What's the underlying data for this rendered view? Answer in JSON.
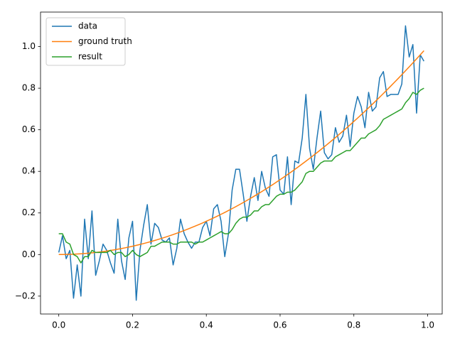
{
  "chart_data": {
    "type": "line",
    "x": [
      0,
      0.01,
      0.02,
      0.03,
      0.04,
      0.05,
      0.06,
      0.07,
      0.08,
      0.09,
      0.1,
      0.11,
      0.12,
      0.13,
      0.14,
      0.15,
      0.16,
      0.17,
      0.18,
      0.19,
      0.2,
      0.21,
      0.22,
      0.23,
      0.24,
      0.25,
      0.26,
      0.27,
      0.28,
      0.29,
      0.3,
      0.31,
      0.32,
      0.33,
      0.34,
      0.35,
      0.36,
      0.37,
      0.38,
      0.39,
      0.4,
      0.41,
      0.42,
      0.43,
      0.44,
      0.45,
      0.46,
      0.47,
      0.48,
      0.49,
      0.5,
      0.51,
      0.52,
      0.53,
      0.54,
      0.55,
      0.56,
      0.57,
      0.58,
      0.59,
      0.6,
      0.61,
      0.62,
      0.63,
      0.64,
      0.65,
      0.66,
      0.67,
      0.68,
      0.69,
      0.7,
      0.71,
      0.72,
      0.73,
      0.74,
      0.75,
      0.76,
      0.77,
      0.78,
      0.79,
      0.8,
      0.81,
      0.82,
      0.83,
      0.84,
      0.85,
      0.86,
      0.87,
      0.88,
      0.89,
      0.9,
      0.91,
      0.92,
      0.93,
      0.94,
      0.95,
      0.96,
      0.97,
      0.98,
      0.99
    ],
    "series": [
      {
        "name": "data",
        "color": "#1f77b4",
        "values": [
          0.01,
          0.09,
          -0.02,
          0.02,
          -0.21,
          -0.05,
          -0.2,
          0.17,
          -0.02,
          0.21,
          -0.1,
          -0.03,
          0.05,
          0.02,
          -0.04,
          -0.09,
          0.17,
          -0.03,
          -0.12,
          0.08,
          0.16,
          -0.22,
          0.02,
          0.14,
          0.24,
          0.05,
          0.15,
          0.13,
          0.07,
          0.06,
          0.08,
          -0.05,
          0.03,
          0.17,
          0.1,
          0.06,
          0.03,
          0.06,
          0.06,
          0.13,
          0.16,
          0.09,
          0.22,
          0.24,
          0.16,
          -0.01,
          0.1,
          0.31,
          0.41,
          0.41,
          0.29,
          0.16,
          0.28,
          0.37,
          0.26,
          0.4,
          0.32,
          0.28,
          0.47,
          0.48,
          0.31,
          0.29,
          0.47,
          0.24,
          0.45,
          0.44,
          0.56,
          0.77,
          0.51,
          0.41,
          0.56,
          0.69,
          0.49,
          0.46,
          0.48,
          0.61,
          0.54,
          0.57,
          0.67,
          0.52,
          0.68,
          0.76,
          0.71,
          0.61,
          0.78,
          0.69,
          0.71,
          0.85,
          0.88,
          0.76,
          0.77,
          0.77,
          0.77,
          0.82,
          1.1,
          0.95,
          1.01,
          0.68,
          0.96,
          0.93
        ]
      },
      {
        "name": "ground truth",
        "color": "#ff7f0e",
        "values": [
          0,
          0.0001,
          0.0004,
          0.0009,
          0.0016,
          0.0025,
          0.0036,
          0.0049,
          0.0064,
          0.0081,
          0.01,
          0.0121,
          0.0144,
          0.0169,
          0.0196,
          0.0225,
          0.0256,
          0.0289,
          0.0324,
          0.0361,
          0.04,
          0.0441,
          0.0484,
          0.0529,
          0.0576,
          0.0625,
          0.0676,
          0.0729,
          0.0784,
          0.0841,
          0.09,
          0.0961,
          0.1024,
          0.1089,
          0.1156,
          0.1225,
          0.1296,
          0.1369,
          0.1444,
          0.1521,
          0.16,
          0.1681,
          0.1764,
          0.1849,
          0.1936,
          0.2025,
          0.2116,
          0.2209,
          0.2304,
          0.2401,
          0.25,
          0.2601,
          0.2704,
          0.2809,
          0.2916,
          0.3025,
          0.3136,
          0.3249,
          0.3364,
          0.3481,
          0.36,
          0.3721,
          0.3844,
          0.3969,
          0.4096,
          0.4225,
          0.4356,
          0.4489,
          0.4624,
          0.4761,
          0.49,
          0.5041,
          0.5184,
          0.5329,
          0.5476,
          0.5625,
          0.5776,
          0.5929,
          0.6084,
          0.6241,
          0.64,
          0.6561,
          0.6724,
          0.6889,
          0.7056,
          0.7225,
          0.7396,
          0.7569,
          0.7744,
          0.7921,
          0.81,
          0.8281,
          0.8464,
          0.8649,
          0.8836,
          0.9025,
          0.9216,
          0.9409,
          0.9604,
          0.9801
        ]
      },
      {
        "name": "result",
        "color": "#2ca02c",
        "values": [
          0.1,
          0.1,
          0.06,
          0.05,
          0,
          -0.01,
          -0.04,
          -0.01,
          -0.01,
          0.02,
          0.01,
          0.01,
          0.01,
          0.01,
          0.02,
          0,
          0.01,
          0.01,
          -0.01,
          0,
          0.02,
          0,
          -0.01,
          0,
          0.01,
          0.04,
          0.04,
          0.05,
          0.06,
          0.06,
          0.06,
          0.05,
          0.05,
          0.06,
          0.06,
          0.06,
          0.06,
          0.05,
          0.06,
          0.06,
          0.07,
          0.08,
          0.09,
          0.1,
          0.11,
          0.1,
          0.1,
          0.12,
          0.15,
          0.17,
          0.18,
          0.18,
          0.19,
          0.21,
          0.21,
          0.23,
          0.24,
          0.24,
          0.26,
          0.28,
          0.29,
          0.29,
          0.3,
          0.3,
          0.31,
          0.33,
          0.35,
          0.39,
          0.4,
          0.4,
          0.42,
          0.44,
          0.45,
          0.45,
          0.45,
          0.47,
          0.48,
          0.49,
          0.5,
          0.5,
          0.52,
          0.54,
          0.56,
          0.56,
          0.58,
          0.59,
          0.6,
          0.62,
          0.65,
          0.66,
          0.67,
          0.68,
          0.69,
          0.7,
          0.73,
          0.75,
          0.78,
          0.77,
          0.79,
          0.8
        ]
      }
    ],
    "xlim": [
      -0.0495,
      1.0395
    ],
    "xticks": [
      {
        "value": 0,
        "label": "0.0"
      },
      0.2,
      0.4,
      0.6,
      0.8,
      {
        "value": 1,
        "label": "1.0"
      }
    ],
    "ylim": [
      -0.286,
      1.166
    ],
    "yticks": [
      {
        "value": -0.2,
        "label": "−0.2"
      },
      {
        "value": 0,
        "label": "0.0"
      },
      0.2,
      0.4,
      0.6,
      0.8,
      {
        "value": 1,
        "label": "1.0"
      }
    ],
    "grid": false,
    "legend": "upper left"
  }
}
